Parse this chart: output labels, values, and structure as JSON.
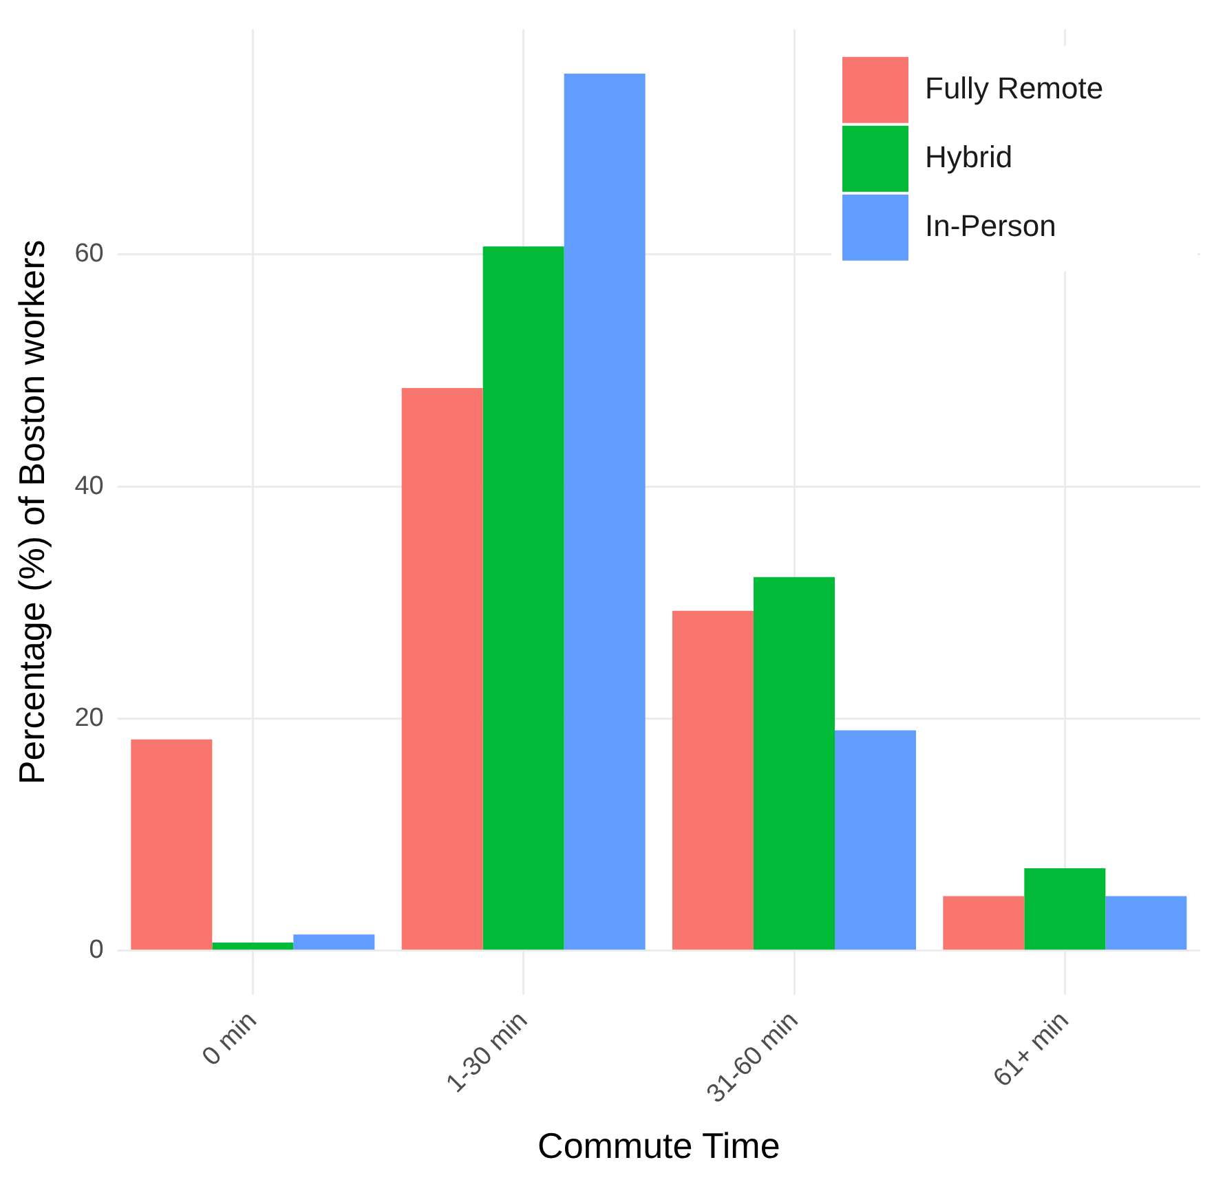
{
  "chart_data": {
    "type": "bar",
    "xlabel": "Commute Time",
    "ylabel": "Percentage (%) of Boston workers",
    "categories": [
      "0 min",
      "1-30 min",
      "31-60 min",
      "61+ min"
    ],
    "series": [
      {
        "name": "Fully Remote",
        "color": "#f8766d",
        "values": [
          18.2,
          48.5,
          29.3,
          4.7
        ]
      },
      {
        "name": "Hybrid",
        "color": "#00ba38",
        "values": [
          0.7,
          60.7,
          32.2,
          7.1
        ]
      },
      {
        "name": "In-Person",
        "color": "#619cff",
        "values": [
          1.4,
          75.6,
          19.0,
          4.7
        ]
      }
    ],
    "ylim": [
      -3.8,
      79.4
    ],
    "yticks": [
      0,
      20,
      40,
      60
    ],
    "grid": true,
    "legend": "top right"
  }
}
